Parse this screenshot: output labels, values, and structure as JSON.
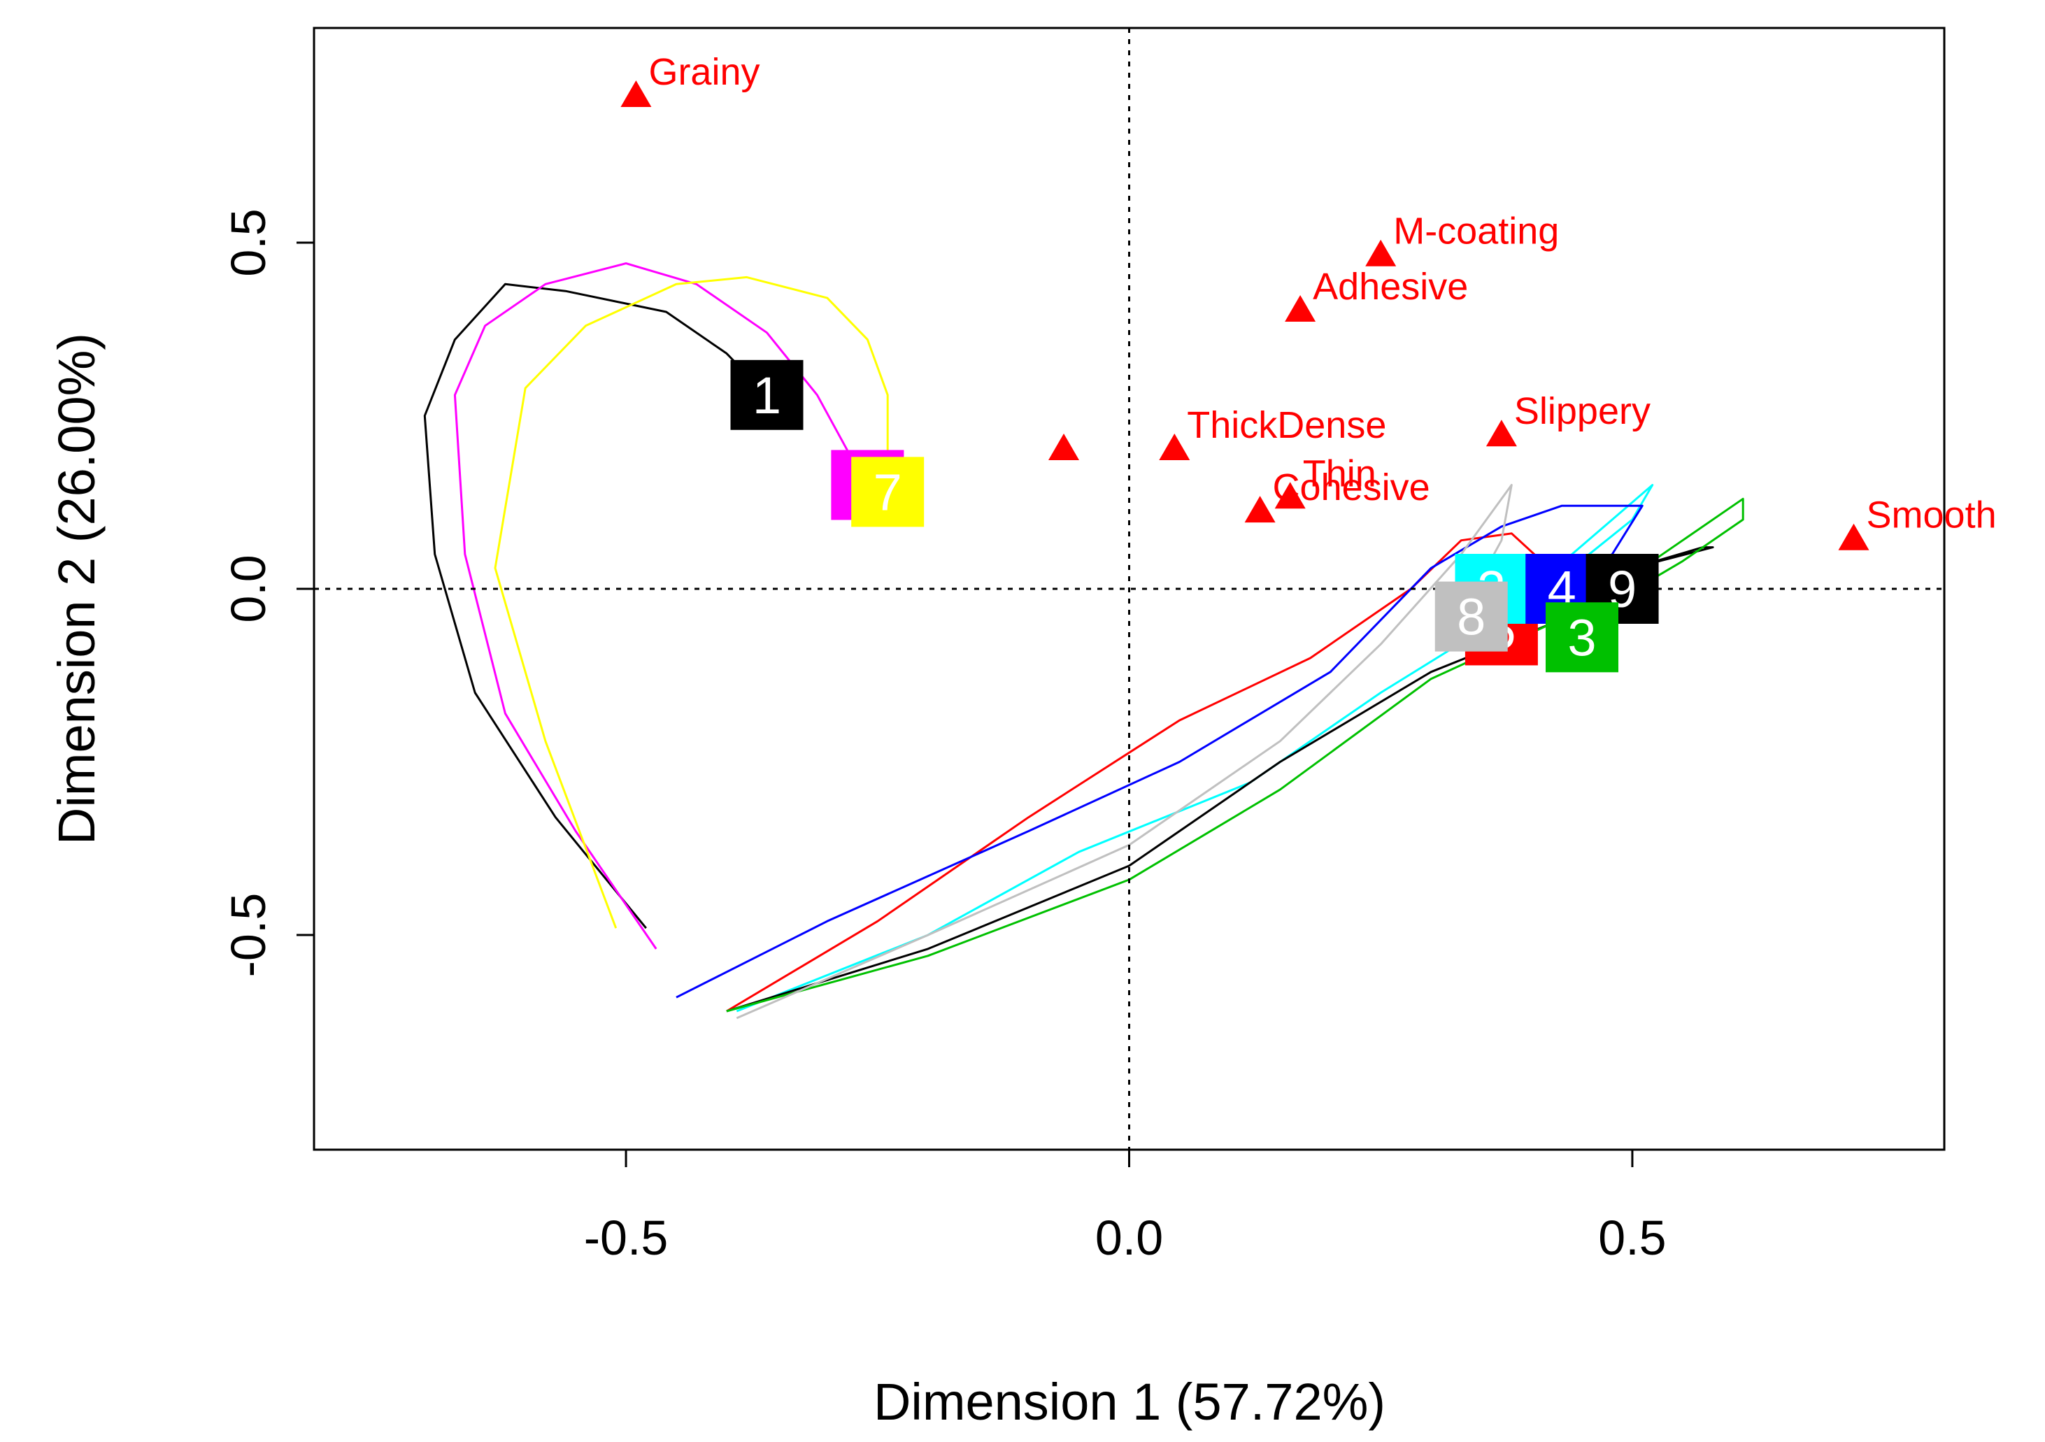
{
  "chart_data": {
    "type": "scatter",
    "title": "",
    "xlabel": "Dimension 1 (57.72%)",
    "ylabel": "Dimension 2 (26.00%)",
    "xlim": [
      -0.81,
      0.81
    ],
    "ylim": [
      -0.81,
      0.81
    ],
    "xticks": [
      -0.5,
      0.0,
      0.5
    ],
    "yticks": [
      -0.5,
      0.0,
      0.5
    ],
    "xtick_labels": [
      "-0.5",
      "0.0",
      "0.5"
    ],
    "ytick_labels": [
      "-0.5",
      "0.0",
      "0.5"
    ],
    "reference_lines": {
      "x": 0,
      "y": 0,
      "style": "dotted"
    },
    "attribute_color": "#ff0000",
    "attributes": [
      {
        "name": "Grainy",
        "x": -0.49,
        "y": 0.71
      },
      {
        "name": "M-coating",
        "x": 0.25,
        "y": 0.48
      },
      {
        "name": "Adhesive",
        "x": 0.17,
        "y": 0.4
      },
      {
        "name": "ThickDense",
        "x": 0.045,
        "y": 0.2
      },
      {
        "name": "Slippery",
        "x": 0.37,
        "y": 0.22
      },
      {
        "name": "Thin",
        "x": 0.16,
        "y": 0.13
      },
      {
        "name": "Cohesive",
        "x": 0.13,
        "y": 0.11
      },
      {
        "name": "Smooth",
        "x": 0.72,
        "y": 0.07
      }
    ],
    "extra_markers": [
      {
        "x": -0.065,
        "y": 0.2
      }
    ],
    "products": [
      {
        "label": "1",
        "x": -0.36,
        "y": 0.28,
        "box_color": "#000000",
        "text_color": "#ffffff",
        "trajectory": [
          [
            -0.48,
            -0.49
          ],
          [
            -0.57,
            -0.33
          ],
          [
            -0.65,
            -0.15
          ],
          [
            -0.69,
            0.05
          ],
          [
            -0.7,
            0.25
          ],
          [
            -0.67,
            0.36
          ],
          [
            -0.62,
            0.44
          ],
          [
            -0.56,
            0.43
          ],
          [
            -0.46,
            0.4
          ],
          [
            -0.4,
            0.34
          ],
          [
            -0.36,
            0.28
          ]
        ]
      },
      {
        "label": "6",
        "x": -0.26,
        "y": 0.15,
        "box_color": "#ff00ff",
        "text_color": "#ffffff",
        "trajectory": [
          [
            -0.47,
            -0.52
          ],
          [
            -0.55,
            -0.35
          ],
          [
            -0.62,
            -0.18
          ],
          [
            -0.66,
            0.05
          ],
          [
            -0.67,
            0.28
          ],
          [
            -0.64,
            0.38
          ],
          [
            -0.58,
            0.44
          ],
          [
            -0.5,
            0.47
          ],
          [
            -0.43,
            0.44
          ],
          [
            -0.36,
            0.37
          ],
          [
            -0.31,
            0.28
          ],
          [
            -0.28,
            0.2
          ]
        ]
      },
      {
        "label": "7",
        "x": -0.24,
        "y": 0.14,
        "box_color": "#ffff00",
        "text_color": "#ffffff",
        "trajectory": [
          [
            -0.51,
            -0.49
          ],
          [
            -0.58,
            -0.22
          ],
          [
            -0.63,
            0.03
          ],
          [
            -0.6,
            0.29
          ],
          [
            -0.54,
            0.38
          ],
          [
            -0.45,
            0.44
          ],
          [
            -0.38,
            0.45
          ],
          [
            -0.3,
            0.42
          ],
          [
            -0.26,
            0.36
          ],
          [
            -0.24,
            0.28
          ],
          [
            -0.24,
            0.2
          ]
        ]
      },
      {
        "label": "5",
        "x": 0.37,
        "y": -0.06,
        "box_color": "#ff0000",
        "text_color": "#ffffff",
        "trajectory": [
          [
            -0.4,
            -0.61
          ],
          [
            -0.25,
            -0.48
          ],
          [
            -0.1,
            -0.33
          ],
          [
            0.05,
            -0.19
          ],
          [
            0.18,
            -0.1
          ],
          [
            0.28,
            0.0
          ],
          [
            0.33,
            0.07
          ],
          [
            0.38,
            0.08
          ],
          [
            0.41,
            0.04
          ],
          [
            0.4,
            -0.02
          ]
        ]
      },
      {
        "label": "2",
        "x": 0.36,
        "y": 0.0,
        "box_color": "#00ffff",
        "text_color": "#ffffff",
        "trajectory": [
          [
            -0.39,
            -0.61
          ],
          [
            -0.2,
            -0.5
          ],
          [
            -0.05,
            -0.38
          ],
          [
            0.12,
            -0.28
          ],
          [
            0.25,
            -0.15
          ],
          [
            0.35,
            -0.06
          ],
          [
            0.44,
            0.03
          ],
          [
            0.5,
            0.1
          ],
          [
            0.52,
            0.15
          ],
          [
            0.48,
            0.1
          ],
          [
            0.4,
            0.0
          ]
        ]
      },
      {
        "label": "4",
        "x": 0.43,
        "y": 0.0,
        "box_color": "#0000ff",
        "text_color": "#ffffff",
        "trajectory": [
          [
            -0.45,
            -0.59
          ],
          [
            -0.3,
            -0.48
          ],
          [
            -0.1,
            -0.35
          ],
          [
            0.05,
            -0.25
          ],
          [
            0.2,
            -0.12
          ],
          [
            0.3,
            0.03
          ],
          [
            0.37,
            0.09
          ],
          [
            0.43,
            0.12
          ],
          [
            0.51,
            0.12
          ],
          [
            0.48,
            0.05
          ],
          [
            0.43,
            0.0
          ]
        ]
      },
      {
        "label": "9",
        "x": 0.49,
        "y": 0.0,
        "box_color": "#000000",
        "text_color": "#ffffff",
        "trajectory": [
          [
            -0.4,
            -0.61
          ],
          [
            -0.2,
            -0.52
          ],
          [
            0.0,
            -0.4
          ],
          [
            0.15,
            -0.25
          ],
          [
            0.3,
            -0.12
          ],
          [
            0.42,
            -0.05
          ],
          [
            0.5,
            0.03
          ],
          [
            0.57,
            0.06
          ],
          [
            0.58,
            0.06
          ],
          [
            0.5,
            0.03
          ]
        ]
      },
      {
        "label": "3",
        "x": 0.45,
        "y": -0.07,
        "box_color": "#00c000",
        "text_color": "#ffffff",
        "trajectory": [
          [
            -0.4,
            -0.61
          ],
          [
            -0.2,
            -0.53
          ],
          [
            0.0,
            -0.42
          ],
          [
            0.15,
            -0.29
          ],
          [
            0.3,
            -0.13
          ],
          [
            0.45,
            -0.03
          ],
          [
            0.55,
            0.07
          ],
          [
            0.61,
            0.13
          ],
          [
            0.61,
            0.1
          ],
          [
            0.55,
            0.04
          ],
          [
            0.48,
            -0.02
          ]
        ]
      },
      {
        "label": "8",
        "x": 0.34,
        "y": -0.04,
        "box_color": "#c0c0c0",
        "text_color": "#ffffff",
        "trajectory": [
          [
            -0.39,
            -0.62
          ],
          [
            -0.2,
            -0.5
          ],
          [
            0.0,
            -0.37
          ],
          [
            0.15,
            -0.22
          ],
          [
            0.25,
            -0.08
          ],
          [
            0.33,
            0.05
          ],
          [
            0.38,
            0.15
          ],
          [
            0.37,
            0.07
          ],
          [
            0.34,
            -0.01
          ]
        ]
      }
    ]
  }
}
